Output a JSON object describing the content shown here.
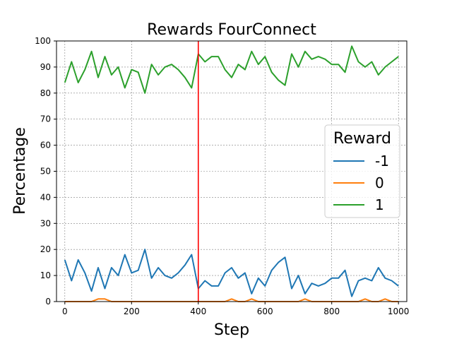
{
  "chart_data": {
    "type": "line",
    "title": "Rewards FourConnect",
    "xlabel": "Step",
    "ylabel": "Percentage",
    "xlim": [
      -25,
      1025
    ],
    "ylim": [
      0,
      100
    ],
    "xticks": [
      0,
      200,
      400,
      600,
      800,
      1000
    ],
    "yticks": [
      0,
      10,
      20,
      30,
      40,
      50,
      60,
      70,
      80,
      90,
      100
    ],
    "grid": true,
    "vline": {
      "x": 400,
      "color": "#ff0000"
    },
    "legend": {
      "title": "Reward",
      "position": "center-right"
    },
    "x": [
      0,
      20,
      40,
      60,
      80,
      100,
      120,
      140,
      160,
      180,
      200,
      220,
      240,
      260,
      280,
      300,
      320,
      340,
      360,
      380,
      400,
      420,
      440,
      460,
      480,
      500,
      520,
      540,
      560,
      580,
      600,
      620,
      640,
      660,
      680,
      700,
      720,
      740,
      760,
      780,
      800,
      820,
      840,
      860,
      880,
      900,
      920,
      940,
      960,
      980,
      1000
    ],
    "series": [
      {
        "name": "-1",
        "color": "#1f77b4",
        "values": [
          16,
          8,
          16,
          11,
          4,
          13,
          5,
          13,
          10,
          18,
          11,
          12,
          20,
          9,
          13,
          10,
          9,
          11,
          14,
          18,
          5,
          8,
          6,
          6,
          11,
          13,
          9,
          11,
          3,
          9,
          6,
          12,
          15,
          17,
          5,
          10,
          3,
          7,
          6,
          7,
          9,
          9,
          12,
          2,
          8,
          9,
          8,
          13,
          9,
          8,
          6
        ]
      },
      {
        "name": "0",
        "color": "#ff7f0e",
        "values": [
          0,
          0,
          0,
          0,
          0,
          1,
          1,
          0,
          0,
          0,
          0,
          0,
          0,
          0,
          0,
          0,
          0,
          0,
          0,
          0,
          0,
          0,
          0,
          0,
          0,
          1,
          0,
          0,
          1,
          0,
          0,
          0,
          0,
          0,
          0,
          0,
          1,
          0,
          0,
          0,
          0,
          0,
          0,
          0,
          0,
          1,
          0,
          0,
          1,
          0,
          0
        ]
      },
      {
        "name": "1",
        "color": "#2ca02c",
        "values": [
          84,
          92,
          84,
          89,
          96,
          86,
          94,
          87,
          90,
          82,
          89,
          88,
          80,
          91,
          87,
          90,
          91,
          89,
          86,
          82,
          95,
          92,
          94,
          94,
          89,
          86,
          91,
          89,
          96,
          91,
          94,
          88,
          85,
          83,
          95,
          90,
          96,
          93,
          94,
          93,
          91,
          91,
          88,
          98,
          92,
          90,
          92,
          87,
          90,
          92,
          94
        ]
      }
    ]
  }
}
